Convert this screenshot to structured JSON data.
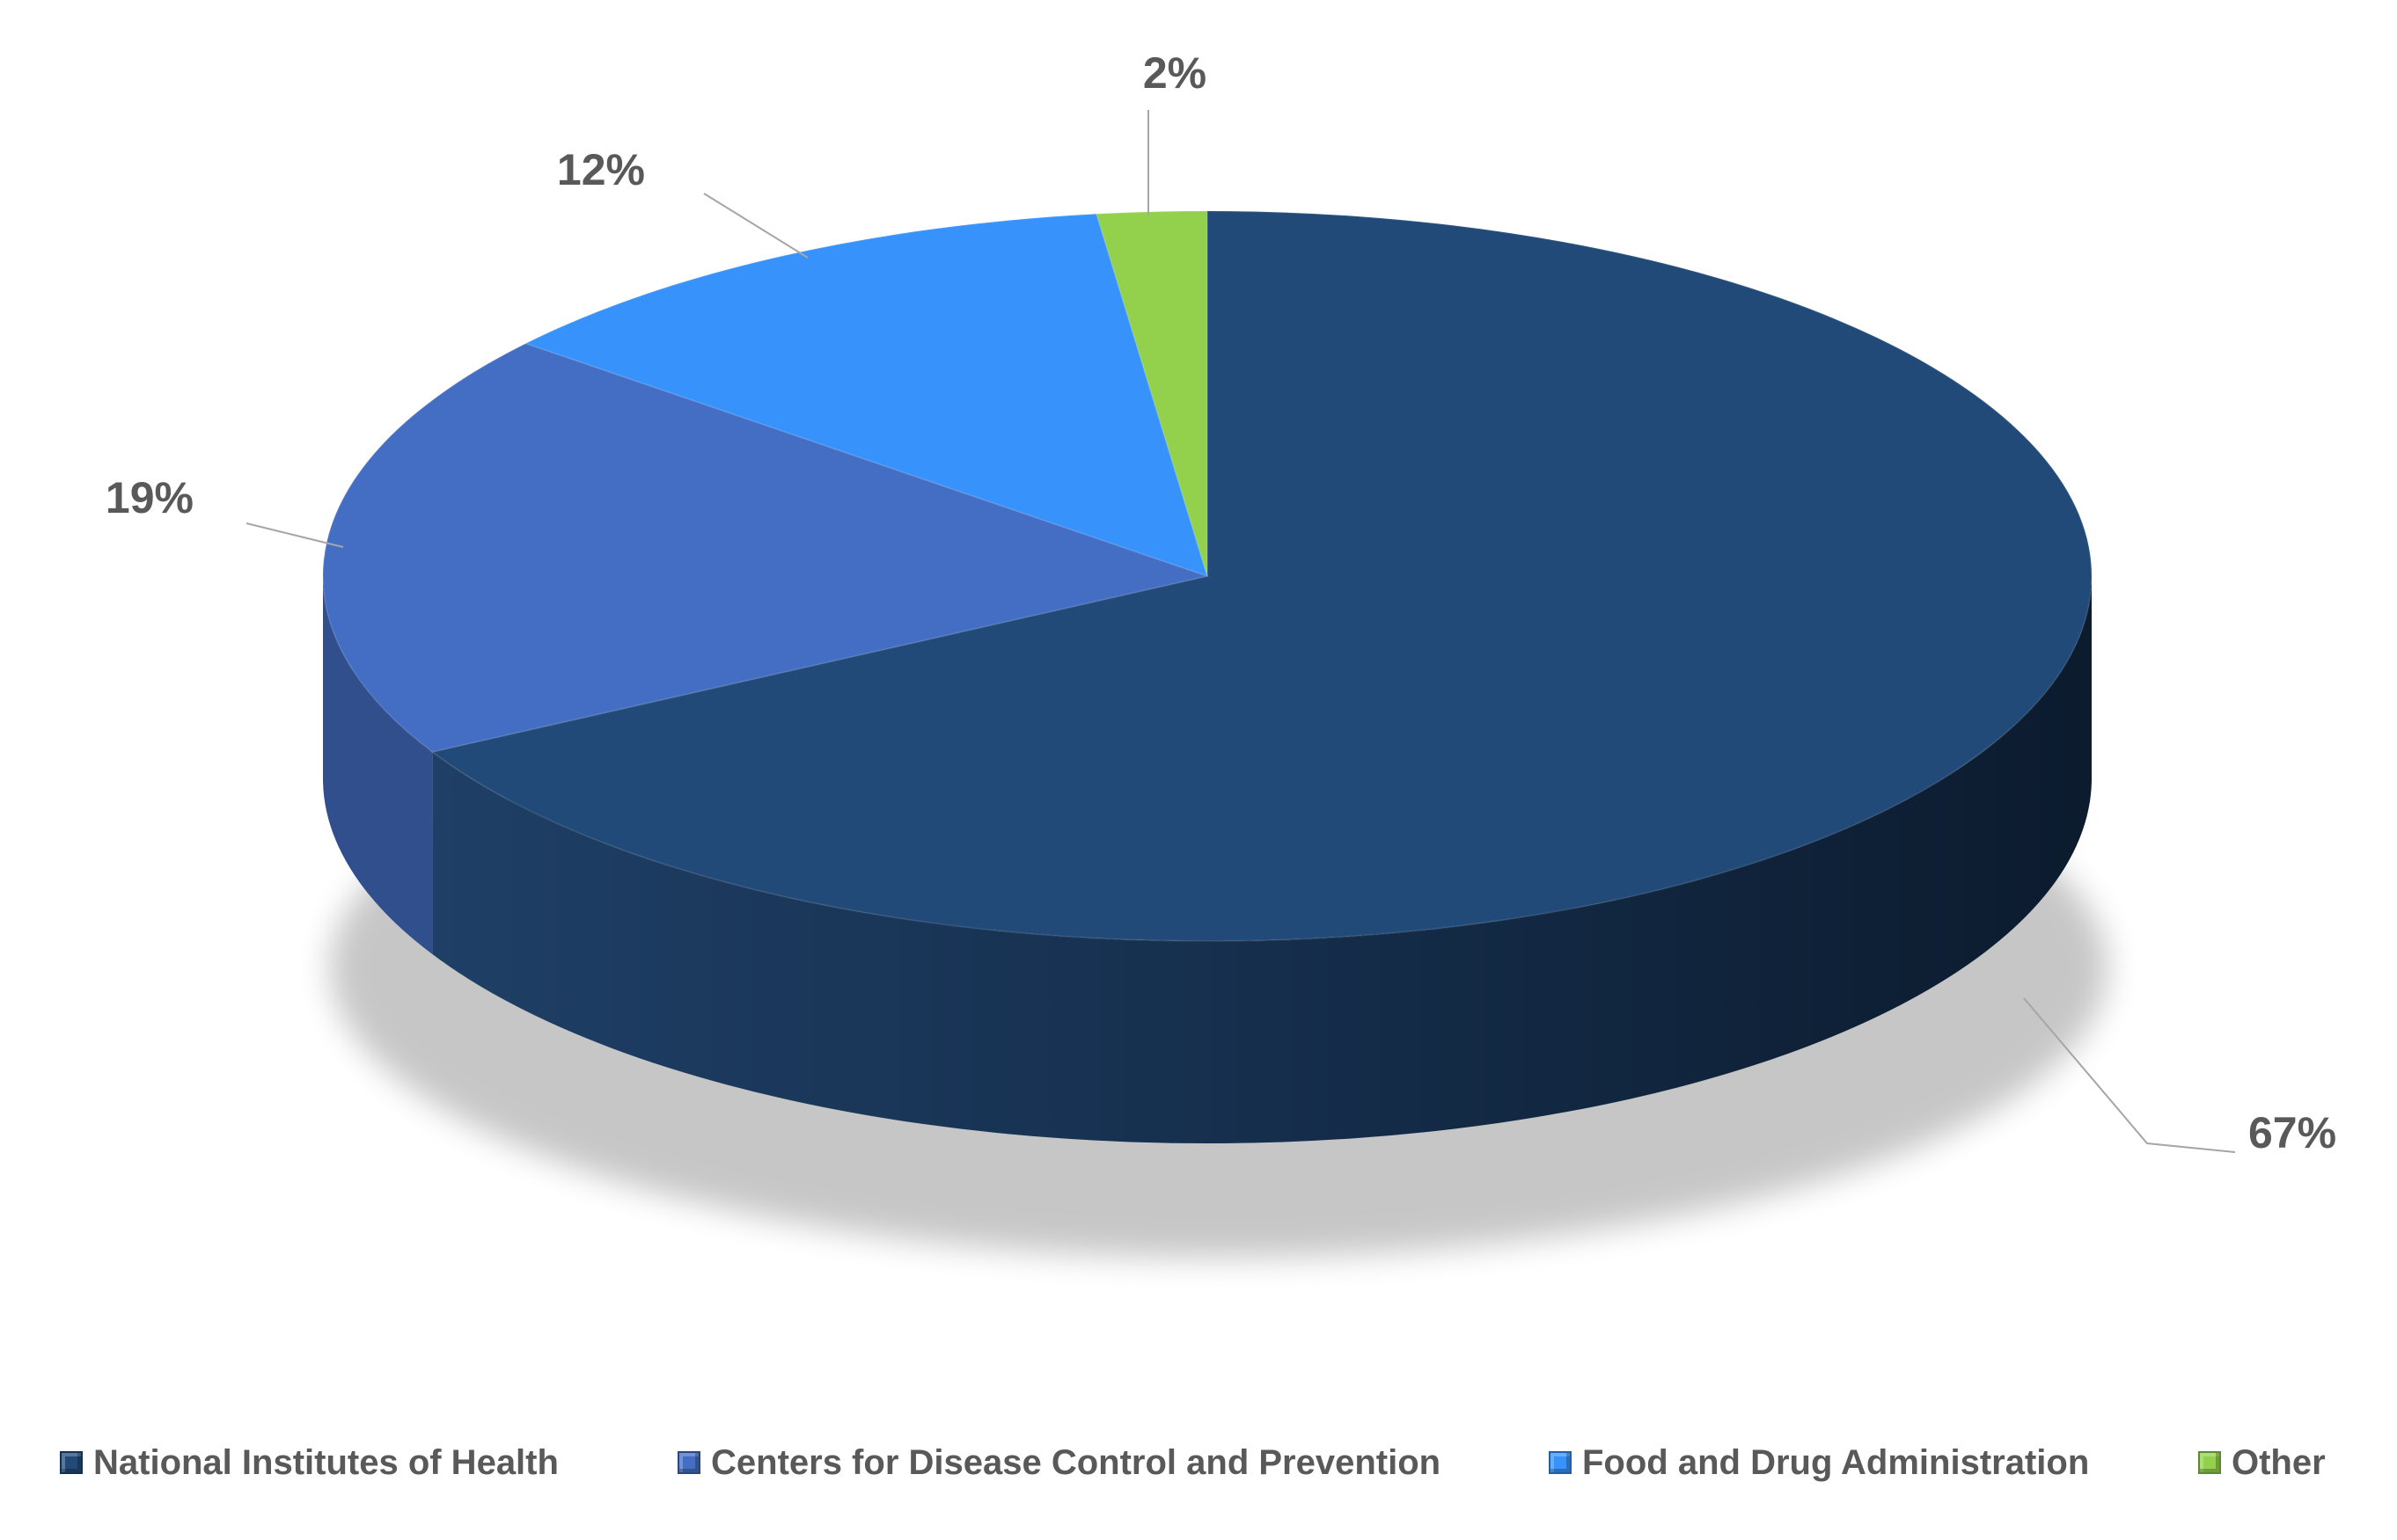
{
  "chart_data": {
    "type": "pie",
    "title": "",
    "categories": [
      "National Institutes of Health",
      "Centers for Disease Control and Prevention",
      "Food and Drug Administration",
      "Other"
    ],
    "values": [
      67,
      19,
      12,
      2
    ],
    "data_labels": [
      "67%",
      "19%",
      "12%",
      "2%"
    ],
    "colors": [
      "#214a78",
      "#446ec4",
      "#3793fb",
      "#93d14d"
    ],
    "style": "3d-pie",
    "legend_position": "bottom"
  }
}
